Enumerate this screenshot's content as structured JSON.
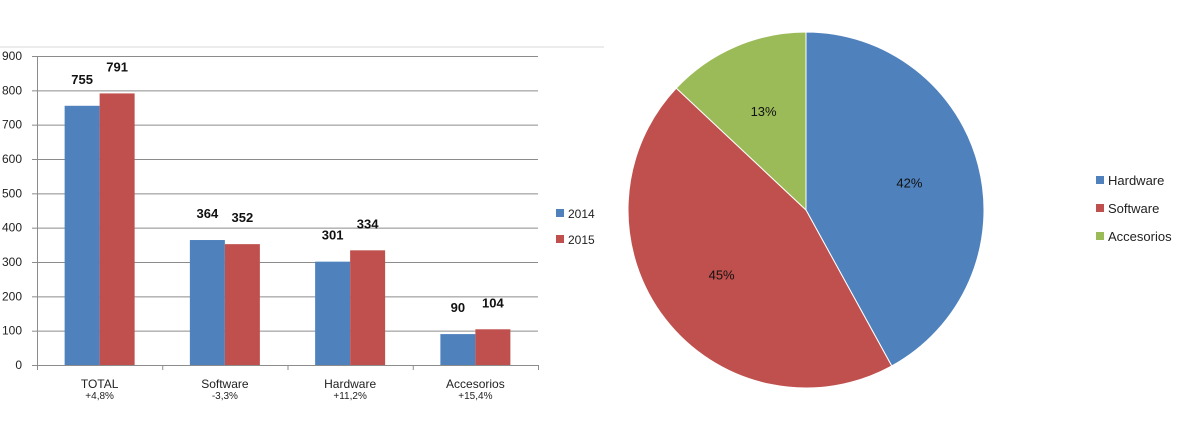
{
  "chart_data": [
    {
      "type": "bar",
      "categories": [
        "TOTAL",
        "Software",
        "Hardware",
        "Accesorios"
      ],
      "category_sublabels": [
        "+4,8%",
        "-3,3%",
        "+11,2%",
        "+15,4%"
      ],
      "series": [
        {
          "name": "2014",
          "values": [
            755,
            364,
            301,
            90
          ],
          "color": "#4F81BD"
        },
        {
          "name": "2015",
          "values": [
            791,
            352,
            334,
            104
          ],
          "color": "#C0504D"
        }
      ],
      "ylim": [
        0,
        900
      ],
      "yticks": [
        "0",
        "100",
        "200",
        "300",
        "400",
        "500",
        "600",
        "700",
        "800",
        "900"
      ],
      "grid": true,
      "legend_position": "right"
    },
    {
      "type": "pie",
      "labels": [
        "Hardware",
        "Software",
        "Accesorios"
      ],
      "values": [
        42,
        45,
        13
      ],
      "value_labels": [
        "42%",
        "45%",
        "13%"
      ],
      "colors": [
        "#4F81BD",
        "#C0504D",
        "#9BBB59"
      ],
      "legend_position": "right"
    }
  ]
}
